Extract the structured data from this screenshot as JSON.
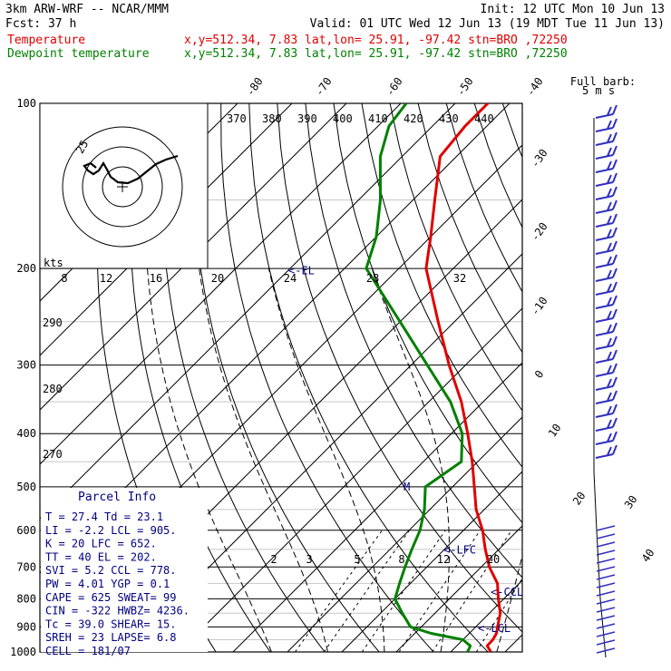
{
  "header": {
    "line1_left": "3km ARW-WRF -- NCAR/MMM",
    "line1_right": "Init: 12 UTC Mon 10 Jun 13",
    "line2_left": "Fcst:   37 h",
    "line2_right": "Valid: 01 UTC Wed 12 Jun 13 (19 MDT Tue 11 Jun 13)",
    "temp_label": "Temperature",
    "temp_info": "x,y=512.34,  7.83   lat,lon= 25.91, -97.42  stn=BRO ,72250",
    "dew_label": "Dewpoint temperature",
    "dew_info": "x,y=512.34,  7.83   lat,lon= 25.91, -97.42  stn=BRO ,72250"
  },
  "barb_legend": {
    "line1": "Full barb:",
    "line2": "5 m s"
  },
  "hodograph": {
    "kts_label": "kts",
    "ring_label": "25"
  },
  "parcel": {
    "title": "Parcel Info",
    "rows": [
      "T   =  27.4  Td =  23.1",
      "LI  =  -2.2  LCL =  905.",
      "K   =    20  LFC =  652.",
      "TT  =    40  EL  =  202.",
      "SVI =   5.2  CCL =  778.",
      "PW  =  4.01  YGP =   0.1",
      "CAPE =   625  SWEAT=   99",
      "CIN  =  -322  HWBZ= 4236.",
      "Tc   =  39.0  SHEAR=   15.",
      "SREH =    23  LAPSE=  6.8",
      "CELL = 181/07"
    ]
  },
  "colors": {
    "temperature": "#e00000",
    "dewpoint": "#008000",
    "annotation": "#000080",
    "barbs": "#3030c0"
  },
  "chart_data": {
    "type": "line",
    "title": "",
    "y_axis": {
      "scale": "log",
      "range": [
        1000,
        100
      ],
      "ticks": [
        100,
        200,
        300,
        400,
        500,
        600,
        700,
        800,
        900,
        1000
      ]
    },
    "isotherm_labels": [
      "-80",
      "-70",
      "-60",
      "-50",
      "-40",
      "-30",
      "-20",
      "-10",
      "0",
      "10",
      "20",
      "30",
      "40"
    ],
    "theta_labels": [
      "370",
      "380",
      "390",
      "400",
      "410",
      "420",
      "430",
      "440"
    ],
    "theta_side_labels": [
      "290",
      "280",
      "270"
    ],
    "mixing_ratio_labels": [
      "2",
      "3",
      "5",
      "8",
      "12",
      "20"
    ],
    "hodo_speed_labels": [
      "8",
      "12",
      "16",
      "20",
      "24",
      "28",
      "32"
    ],
    "level_markers": [
      {
        "label": "<-EL",
        "p": 202
      },
      {
        "label": "<-LFC",
        "p": 652
      },
      {
        "label": "<-CCL",
        "p": 778
      },
      {
        "label": "<-LCL",
        "p": 905
      },
      {
        "label": "M",
        "p": 500
      }
    ],
    "series": [
      {
        "name": "Temperature",
        "points": [
          [
            1000,
            27.4
          ],
          [
            975,
            25.6
          ],
          [
            950,
            25.5
          ],
          [
            925,
            25
          ],
          [
            900,
            24
          ],
          [
            850,
            22
          ],
          [
            800,
            19
          ],
          [
            750,
            16
          ],
          [
            700,
            11.5
          ],
          [
            650,
            7.5
          ],
          [
            600,
            3.5
          ],
          [
            550,
            -1.5
          ],
          [
            500,
            -6
          ],
          [
            450,
            -11
          ],
          [
            400,
            -17
          ],
          [
            350,
            -24
          ],
          [
            300,
            -33
          ],
          [
            250,
            -43
          ],
          [
            200,
            -55
          ],
          [
            175,
            -60
          ],
          [
            150,
            -66
          ],
          [
            125,
            -73
          ],
          [
            110,
            -74
          ],
          [
            100,
            -74
          ]
        ]
      },
      {
        "name": "Dewpoint temperature",
        "points": [
          [
            1000,
            23.1
          ],
          [
            975,
            22.5
          ],
          [
            950,
            20
          ],
          [
            925,
            13
          ],
          [
            900,
            8
          ],
          [
            850,
            4
          ],
          [
            800,
            0
          ],
          [
            750,
            -2
          ],
          [
            700,
            -4
          ],
          [
            650,
            -6
          ],
          [
            600,
            -8
          ],
          [
            550,
            -11
          ],
          [
            500,
            -15
          ],
          [
            450,
            -13
          ],
          [
            400,
            -18
          ],
          [
            350,
            -26
          ],
          [
            300,
            -37
          ],
          [
            250,
            -50
          ],
          [
            200,
            -66
          ],
          [
            175,
            -70
          ],
          [
            150,
            -76
          ],
          [
            125,
            -84
          ],
          [
            110,
            -88
          ],
          [
            100,
            -89
          ]
        ]
      }
    ]
  }
}
